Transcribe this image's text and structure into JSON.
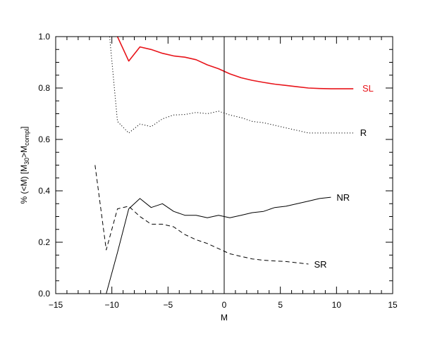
{
  "chart_data": {
    "type": "line",
    "title": "",
    "xlabel": "M",
    "ylabel": {
      "prefix": "% (<M)  [M",
      "sub1": "30",
      "middle": ">M",
      "sub2": "compl",
      "suffix": "]"
    },
    "xlim": [
      -15,
      15
    ],
    "ylim": [
      0.0,
      1.0
    ],
    "xticks": [
      -15,
      -10,
      -5,
      0,
      5,
      10,
      15
    ],
    "yticks": [
      0.0,
      0.2,
      0.4,
      0.6,
      0.8,
      1.0
    ],
    "xtick_labels": [
      "−15",
      "−10",
      "−5",
      "0",
      "5",
      "10",
      "15"
    ],
    "ytick_labels": [
      "0.0",
      "0.2",
      "0.4",
      "0.6",
      "0.8",
      "1.0"
    ],
    "vertical_line_x": 0,
    "grid": false,
    "series": [
      {
        "name": "SL",
        "color": "#e8141a",
        "style": "solid",
        "label_at": [
          12.3,
          0.8
        ],
        "points": [
          [
            -9.5,
            1.0
          ],
          [
            -8.5,
            0.905
          ],
          [
            -7.5,
            0.96
          ],
          [
            -6.5,
            0.95
          ],
          [
            -5.5,
            0.935
          ],
          [
            -4.5,
            0.925
          ],
          [
            -3.5,
            0.92
          ],
          [
            -2.5,
            0.91
          ],
          [
            -1.5,
            0.89
          ],
          [
            -0.5,
            0.875
          ],
          [
            0.5,
            0.855
          ],
          [
            1.5,
            0.84
          ],
          [
            2.5,
            0.83
          ],
          [
            3.5,
            0.822
          ],
          [
            4.5,
            0.815
          ],
          [
            5.5,
            0.81
          ],
          [
            6.5,
            0.805
          ],
          [
            7.5,
            0.8
          ],
          [
            8.5,
            0.798
          ],
          [
            9.5,
            0.797
          ],
          [
            10.5,
            0.797
          ],
          [
            11.5,
            0.797
          ]
        ]
      },
      {
        "name": "R",
        "color": "#000000",
        "style": "dotted",
        "label_at": [
          12.1,
          0.627
        ],
        "points": [
          [
            -10.2,
            1.0
          ],
          [
            -9.5,
            0.67
          ],
          [
            -8.5,
            0.625
          ],
          [
            -7.5,
            0.66
          ],
          [
            -6.5,
            0.65
          ],
          [
            -5.5,
            0.68
          ],
          [
            -4.5,
            0.695
          ],
          [
            -3.5,
            0.697
          ],
          [
            -2.5,
            0.705
          ],
          [
            -1.5,
            0.7
          ],
          [
            -0.5,
            0.71
          ],
          [
            0.5,
            0.695
          ],
          [
            1.5,
            0.685
          ],
          [
            2.5,
            0.67
          ],
          [
            3.5,
            0.665
          ],
          [
            4.5,
            0.655
          ],
          [
            5.5,
            0.645
          ],
          [
            6.5,
            0.635
          ],
          [
            7.5,
            0.625
          ],
          [
            8.5,
            0.625
          ],
          [
            9.5,
            0.625
          ],
          [
            10.5,
            0.625
          ],
          [
            11.5,
            0.625
          ]
        ]
      },
      {
        "name": "NR",
        "color": "#000000",
        "style": "solid",
        "label_at": [
          10.0,
          0.375
        ],
        "points": [
          [
            -10.5,
            0.0
          ],
          [
            -9.5,
            0.16
          ],
          [
            -8.5,
            0.33
          ],
          [
            -7.5,
            0.37
          ],
          [
            -6.5,
            0.335
          ],
          [
            -5.5,
            0.35
          ],
          [
            -4.5,
            0.32
          ],
          [
            -3.5,
            0.305
          ],
          [
            -2.5,
            0.305
          ],
          [
            -1.5,
            0.295
          ],
          [
            -0.5,
            0.305
          ],
          [
            0.5,
            0.295
          ],
          [
            1.5,
            0.305
          ],
          [
            2.5,
            0.315
          ],
          [
            3.5,
            0.32
          ],
          [
            4.5,
            0.335
          ],
          [
            5.5,
            0.34
          ],
          [
            6.5,
            0.35
          ],
          [
            7.5,
            0.36
          ],
          [
            8.5,
            0.37
          ],
          [
            9.5,
            0.375
          ]
        ]
      },
      {
        "name": "SR",
        "color": "#000000",
        "style": "dashed",
        "label_at": [
          8.0,
          0.115
        ],
        "points": [
          [
            -11.5,
            0.5
          ],
          [
            -10.5,
            0.17
          ],
          [
            -9.5,
            0.33
          ],
          [
            -8.5,
            0.34
          ],
          [
            -7.5,
            0.3
          ],
          [
            -6.5,
            0.27
          ],
          [
            -5.5,
            0.27
          ],
          [
            -4.5,
            0.26
          ],
          [
            -3.5,
            0.23
          ],
          [
            -2.5,
            0.21
          ],
          [
            -1.5,
            0.195
          ],
          [
            -0.5,
            0.175
          ],
          [
            0.5,
            0.155
          ],
          [
            1.5,
            0.145
          ],
          [
            2.5,
            0.135
          ],
          [
            3.5,
            0.13
          ],
          [
            4.5,
            0.127
          ],
          [
            5.5,
            0.125
          ],
          [
            6.5,
            0.12
          ],
          [
            7.5,
            0.115
          ]
        ]
      }
    ]
  }
}
